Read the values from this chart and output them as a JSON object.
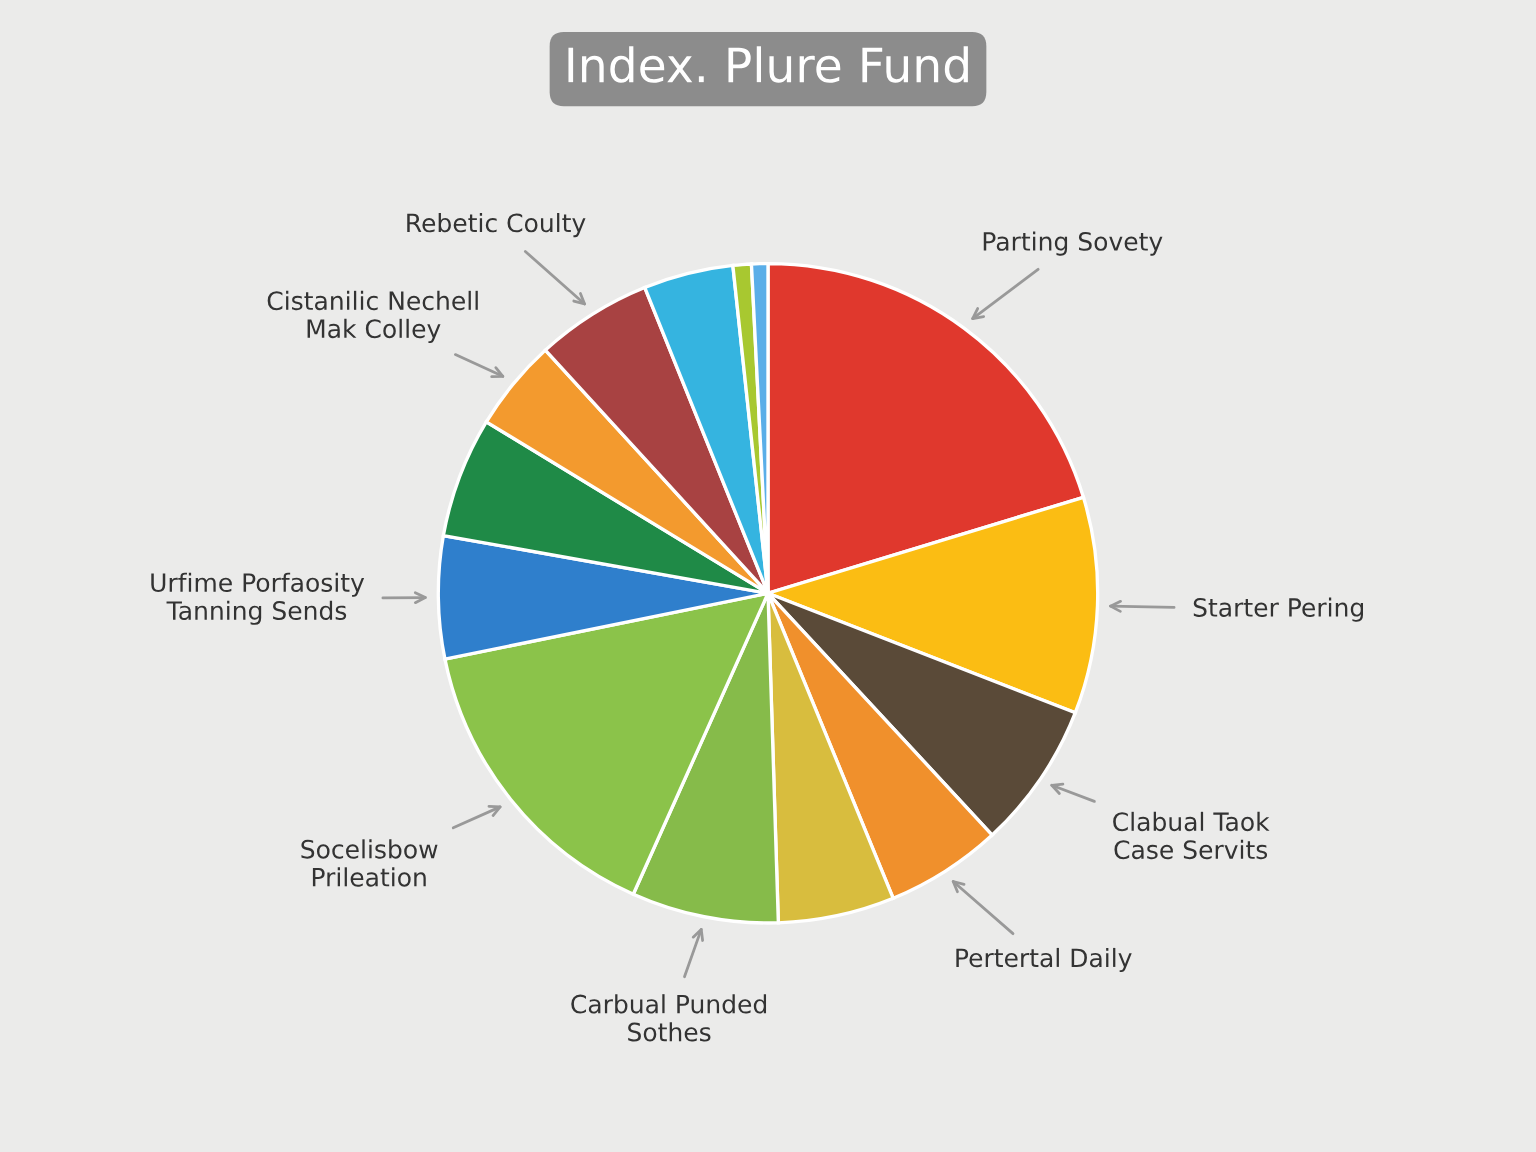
{
  "chart_data": {
    "type": "pie",
    "title": "Index. Plure Fund",
    "categories": [
      "Parting Sovety",
      "Starter Pering",
      "Clabual Taok\nCase Servits",
      "Pertertal Daily",
      null,
      "Carbual Punded\nSothes",
      "Socelisbow\nPrileation",
      "Urfime Porfaosity\nTanning Sends",
      null,
      "Cistanilic Nechell\nMak Colley",
      "Rebetic Coulty",
      null,
      null,
      null
    ],
    "values": [
      20.3,
      10.6,
      7.2,
      5.7,
      5.7,
      7.2,
      15.1,
      6.0,
      5.9,
      4.5,
      5.7,
      4.4,
      0.9,
      0.8
    ],
    "colors": [
      "#e0382d",
      "#fbbd13",
      "#5a4a38",
      "#f0902c",
      "#d8bd3e",
      "#86bb4a",
      "#8bc34a",
      "#2f7fcc",
      "#1f8a47",
      "#f39a2e",
      "#a84242",
      "#35b4e0",
      "#a8c830",
      "#5aaee8"
    ]
  }
}
